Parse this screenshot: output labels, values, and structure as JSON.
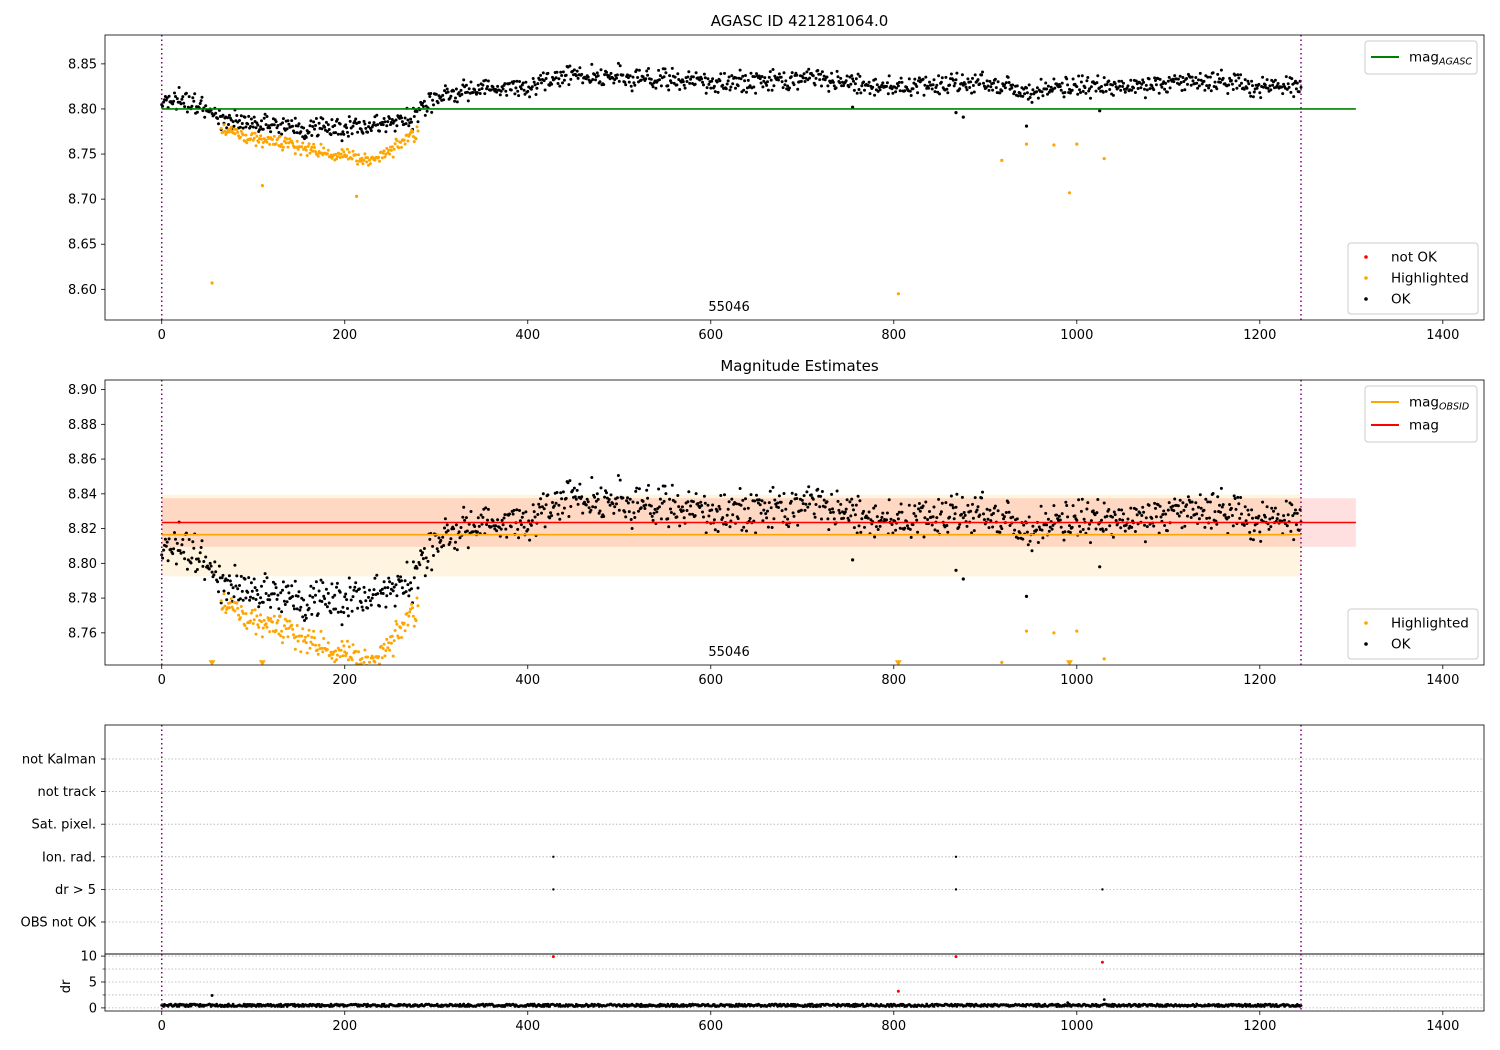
{
  "chart_data": [
    {
      "type": "scatter",
      "title": "AGASC ID 421281064.0",
      "xlim": [
        -62,
        1445
      ],
      "ylim": [
        8.566,
        8.882
      ],
      "xticks": [
        0,
        200,
        400,
        600,
        800,
        1000,
        1200,
        1400
      ],
      "yticks": [
        "8.60",
        "8.65",
        "8.70",
        "8.75",
        "8.80",
        "8.85"
      ],
      "annotation": "55046",
      "obs_boundaries": [
        0,
        1245
      ],
      "hlines": [
        {
          "name": "mag_AGASC",
          "y": 8.8,
          "x_range": [
            0,
            1305
          ],
          "color": "#008000"
        }
      ],
      "legend_lines": [
        {
          "label": "mag",
          "sub": "AGASC",
          "color": "#008000"
        }
      ],
      "legend_points": [
        {
          "label": "not OK",
          "color": "#ff0000"
        },
        {
          "label": "Highlighted",
          "color": "#ffa500"
        },
        {
          "label": "OK",
          "color": "#000000"
        }
      ],
      "series": [
        {
          "name": "OK",
          "color": "#000000",
          "trend": [
            [
              0,
              8.812
            ],
            [
              30,
              8.806
            ],
            [
              60,
              8.793
            ],
            [
              100,
              8.782
            ],
            [
              150,
              8.778
            ],
            [
              200,
              8.779
            ],
            [
              240,
              8.783
            ],
            [
              270,
              8.789
            ],
            [
              300,
              8.812
            ],
            [
              350,
              8.823
            ],
            [
              400,
              8.825
            ],
            [
              440,
              8.838
            ],
            [
              500,
              8.836
            ],
            [
              560,
              8.833
            ],
            [
              620,
              8.828
            ],
            [
              680,
              8.832
            ],
            [
              720,
              8.836
            ],
            [
              780,
              8.826
            ],
            [
              850,
              8.826
            ],
            [
              900,
              8.829
            ],
            [
              950,
              8.82
            ],
            [
              1000,
              8.826
            ],
            [
              1050,
              8.824
            ],
            [
              1100,
              8.828
            ],
            [
              1150,
              8.832
            ],
            [
              1200,
              8.824
            ],
            [
              1245,
              8.824
            ]
          ],
          "x_range": [
            0,
            1245
          ],
          "scatter": 0.008
        },
        {
          "name": "Highlighted",
          "color": "#ffa500",
          "trend": [
            [
              65,
              8.778
            ],
            [
              100,
              8.768
            ],
            [
              150,
              8.756
            ],
            [
              200,
              8.748
            ],
            [
              230,
              8.744
            ],
            [
              255,
              8.758
            ],
            [
              280,
              8.775
            ]
          ],
          "x_range": [
            65,
            280
          ],
          "scatter": 0.006
        },
        {
          "name": "Highlighted outliers",
          "color": "#ffa500",
          "points": [
            [
              55,
              8.607
            ],
            [
              110,
              8.715
            ],
            [
              213,
              8.703
            ],
            [
              805,
              8.595
            ],
            [
              918,
              8.743
            ],
            [
              945,
              8.761
            ],
            [
              975,
              8.76
            ],
            [
              992,
              8.707
            ],
            [
              1000,
              8.761
            ],
            [
              1030,
              8.745
            ]
          ]
        },
        {
          "name": "OK outliers",
          "color": "#000000",
          "points": [
            [
              945,
              8.781
            ],
            [
              868,
              8.796
            ],
            [
              876,
              8.791
            ],
            [
              1025,
              8.798
            ],
            [
              755,
              8.802
            ]
          ]
        }
      ]
    },
    {
      "type": "scatter",
      "title": "Magnitude Estimates",
      "xlim": [
        -62,
        1445
      ],
      "ylim": [
        8.7415,
        8.9055
      ],
      "xticks": [
        0,
        200,
        400,
        600,
        800,
        1000,
        1200,
        1400
      ],
      "yticks": [
        "8.76",
        "8.78",
        "8.80",
        "8.82",
        "8.84",
        "8.86",
        "8.88",
        "8.90"
      ],
      "annotation": "55046",
      "obs_boundaries": [
        0,
        1245
      ],
      "bands": [
        {
          "name": "mag band",
          "y": [
            8.8095,
            8.8375
          ],
          "x_range": [
            0,
            1305
          ],
          "color": "#ff0000",
          "opacity": 0.12
        },
        {
          "name": "mag_OBSID band",
          "y": [
            8.7925,
            8.8395
          ],
          "x_range": [
            0,
            1245
          ],
          "color": "#ffa500",
          "opacity": 0.12
        }
      ],
      "hlines": [
        {
          "name": "mag_OBSID",
          "y": 8.8165,
          "x_range": [
            0,
            1245
          ],
          "color": "#ffa500"
        },
        {
          "name": "mag",
          "y": 8.8235,
          "x_range": [
            0,
            1305
          ],
          "color": "#ff0000"
        }
      ],
      "legend_lines": [
        {
          "label": "mag",
          "sub": "OBSID",
          "color": "#ffa500"
        },
        {
          "label": "mag",
          "sub": "",
          "color": "#ff0000"
        }
      ],
      "legend_points": [
        {
          "label": "Highlighted",
          "color": "#ffa500"
        },
        {
          "label": "OK",
          "color": "#000000"
        }
      ],
      "series": [
        {
          "name": "OK",
          "color": "#000000",
          "trend": [
            [
              0,
              8.812
            ],
            [
              30,
              8.806
            ],
            [
              60,
              8.793
            ],
            [
              100,
              8.782
            ],
            [
              150,
              8.778
            ],
            [
              200,
              8.779
            ],
            [
              240,
              8.783
            ],
            [
              270,
              8.789
            ],
            [
              300,
              8.812
            ],
            [
              350,
              8.823
            ],
            [
              400,
              8.825
            ],
            [
              440,
              8.838
            ],
            [
              500,
              8.836
            ],
            [
              560,
              8.833
            ],
            [
              620,
              8.828
            ],
            [
              680,
              8.832
            ],
            [
              720,
              8.836
            ],
            [
              780,
              8.826
            ],
            [
              850,
              8.826
            ],
            [
              900,
              8.829
            ],
            [
              950,
              8.82
            ],
            [
              1000,
              8.826
            ],
            [
              1050,
              8.824
            ],
            [
              1100,
              8.828
            ],
            [
              1150,
              8.832
            ],
            [
              1200,
              8.824
            ],
            [
              1245,
              8.824
            ]
          ],
          "x_range": [
            0,
            1245
          ],
          "scatter": 0.008
        },
        {
          "name": "Highlighted",
          "color": "#ffa500",
          "trend": [
            [
              65,
              8.778
            ],
            [
              100,
              8.768
            ],
            [
              150,
              8.756
            ],
            [
              200,
              8.748
            ],
            [
              230,
              8.744
            ],
            [
              255,
              8.758
            ],
            [
              280,
              8.775
            ]
          ],
          "x_range": [
            65,
            280
          ],
          "scatter": 0.006
        },
        {
          "name": "Highlighted outliers",
          "color": "#ffa500",
          "points": [
            [
              945,
              8.761
            ],
            [
              975,
              8.76
            ],
            [
              1000,
              8.761
            ],
            [
              1030,
              8.745
            ],
            [
              918,
              8.743
            ]
          ]
        },
        {
          "name": "Highlighted clipped",
          "color": "#ffa500",
          "marker": "triangle-down",
          "points": [
            [
              55,
              8.7425
            ],
            [
              110,
              8.7425
            ],
            [
              805,
              8.7425
            ],
            [
              992,
              8.7425
            ]
          ]
        },
        {
          "name": "OK outliers",
          "color": "#000000",
          "points": [
            [
              945,
              8.781
            ],
            [
              868,
              8.796
            ],
            [
              876,
              8.791
            ],
            [
              1025,
              8.798
            ],
            [
              755,
              8.802
            ]
          ]
        }
      ]
    },
    {
      "type": "scatter",
      "title": "",
      "xlim": [
        -62,
        1445
      ],
      "obs_boundaries": [
        0,
        1245
      ],
      "categories": [
        "not Kalman",
        "not track",
        "Sat. pixel.",
        "Ion. rad.",
        "dr > 5",
        "OBS not OK"
      ],
      "flags": [
        {
          "category": "Ion. rad.",
          "x": [
            428,
            868
          ]
        },
        {
          "category": "dr > 5",
          "x": [
            428,
            868,
            1028
          ]
        }
      ]
    },
    {
      "type": "scatter",
      "title": "",
      "ylabel": "dr",
      "xlim": [
        -62,
        1445
      ],
      "ylim": [
        -0.6,
        10.4
      ],
      "xticks": [
        0,
        200,
        400,
        600,
        800,
        1000,
        1200,
        1400
      ],
      "yticks": [
        "0",
        "5",
        "10"
      ],
      "obs_boundaries": [
        0,
        1245
      ],
      "series": [
        {
          "name": "OK",
          "color": "#000000",
          "baseline": 0.5,
          "x_range": [
            0,
            1245
          ],
          "spikes": [
            [
              55,
              2.4
            ],
            [
              1030,
              1.6
            ],
            [
              990,
              1.0
            ]
          ]
        },
        {
          "name": "not OK",
          "color": "#ff0000",
          "points": [
            [
              428,
              9.9
            ],
            [
              868,
              9.9
            ],
            [
              1028,
              8.8
            ],
            [
              805,
              3.2
            ]
          ]
        }
      ]
    }
  ]
}
